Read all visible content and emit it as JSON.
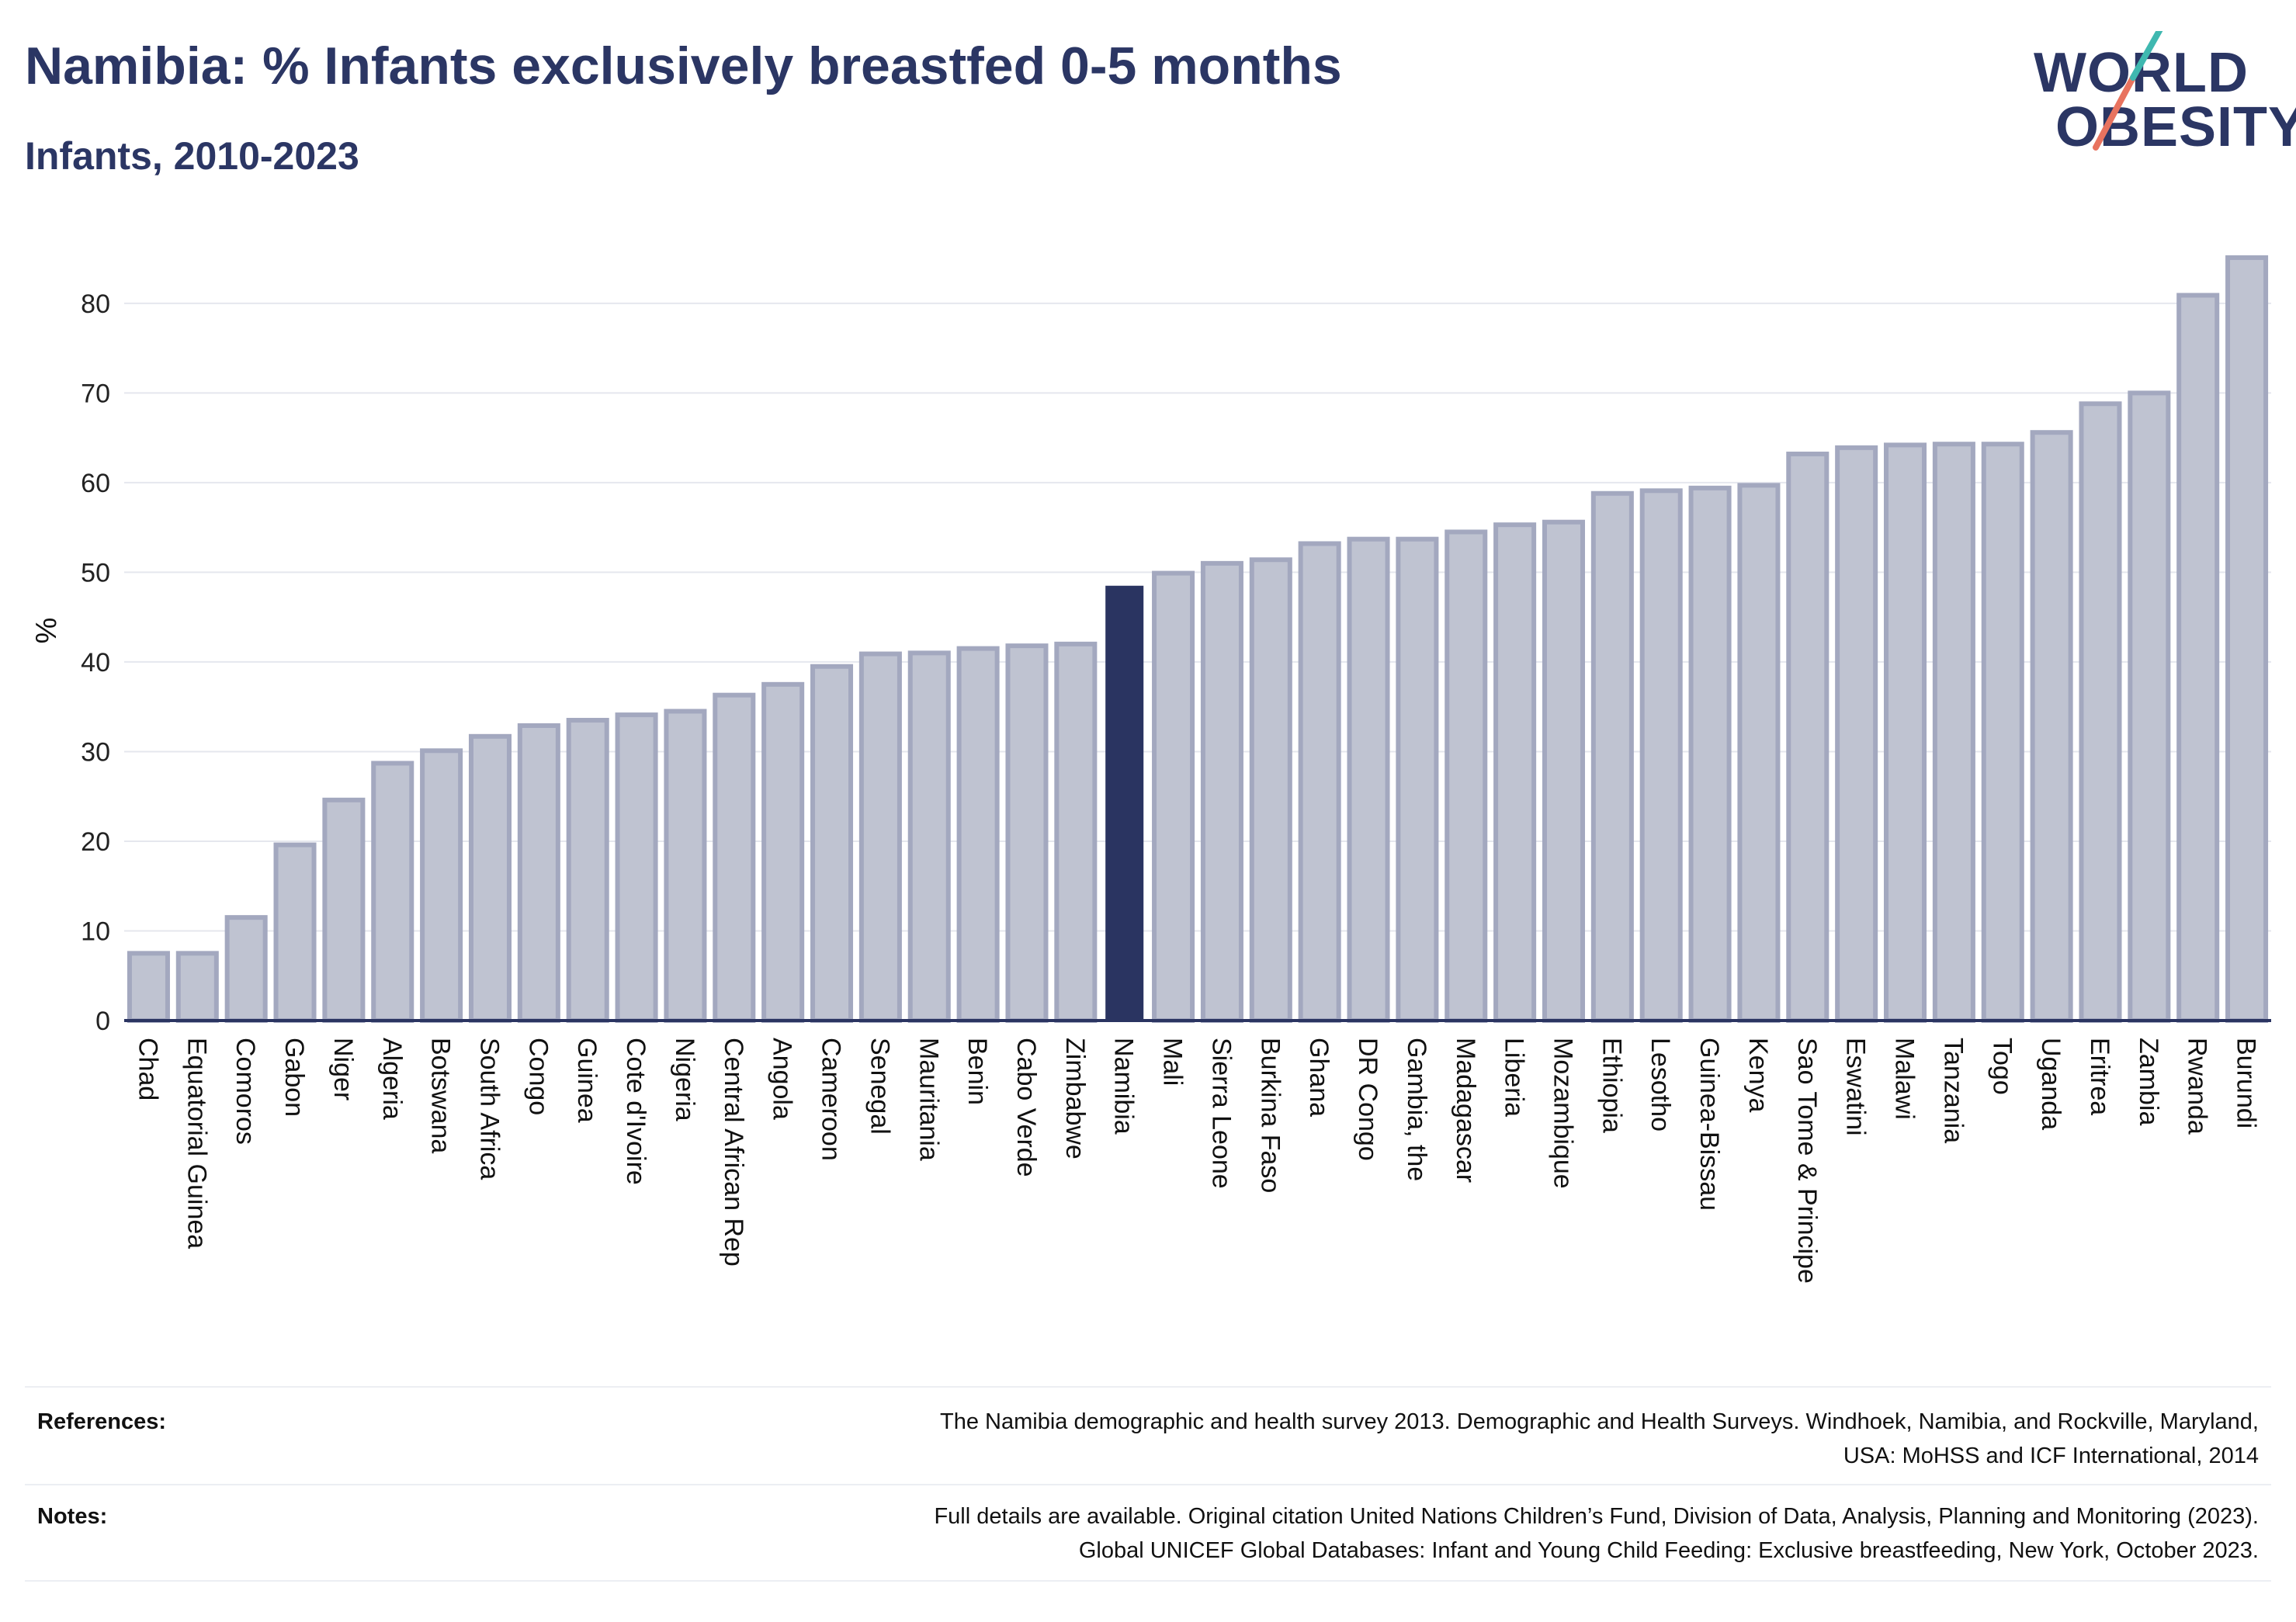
{
  "header": {
    "title": "Namibia: % Infants exclusively breastfed 0-5 months",
    "subtitle": "Infants, 2010-2023"
  },
  "logo": {
    "line1": "WORLD",
    "line2": "OBESITY",
    "slash_colors": [
      "#3fb8b0",
      "#e8735f"
    ]
  },
  "colors": {
    "bar": "#bfc3d1",
    "bar_border": "#a3a8bf",
    "highlight": "#2a3461",
    "grid": "#e5e7ee",
    "axis": "#2a3461"
  },
  "chart_data": {
    "type": "bar",
    "ylabel": "%",
    "ylim": [
      0,
      87
    ],
    "yticks": [
      0,
      10,
      20,
      30,
      40,
      50,
      60,
      70,
      80
    ],
    "grid": true,
    "highlight": "Namibia",
    "categories": [
      "Chad",
      "Equatorial Guinea",
      "Comoros",
      "Gabon",
      "Niger",
      "Algeria",
      "Botswana",
      "South Africa",
      "Congo",
      "Guinea",
      "Cote d'Ivoire",
      "Nigeria",
      "Central African Rep",
      "Angola",
      "Cameroon",
      "Senegal",
      "Mauritania",
      "Benin",
      "Cabo Verde",
      "Zimbabwe",
      "Namibia",
      "Mali",
      "Sierra Leone",
      "Burkina Faso",
      "Ghana",
      "DR Congo",
      "Gambia, the",
      "Madagascar",
      "Liberia",
      "Mozambique",
      "Ethiopia",
      "Lesotho",
      "Guinea-Bissau",
      "Kenya",
      "Sao Tome & Principe",
      "Eswatini",
      "Malawi",
      "Tanzania",
      "Togo",
      "Uganda",
      "Eritrea",
      "Zambia",
      "Rwanda",
      "Burundi"
    ],
    "values": [
      7.5,
      7.5,
      11.5,
      19.6,
      24.6,
      28.7,
      30.1,
      31.7,
      32.9,
      33.5,
      34.1,
      34.5,
      36.3,
      37.5,
      39.5,
      40.9,
      41.0,
      41.5,
      41.8,
      42.0,
      48.5,
      49.9,
      51.0,
      51.4,
      53.2,
      53.7,
      53.7,
      54.5,
      55.3,
      55.6,
      58.8,
      59.1,
      59.4,
      59.7,
      63.2,
      63.9,
      64.2,
      64.3,
      64.3,
      65.6,
      68.8,
      70.0,
      80.9,
      85.1
    ]
  },
  "footer": {
    "references_label": "References:",
    "references_lines": [
      "The Namibia demographic and health survey 2013. Demographic and Health Surveys. Windhoek, Namibia, and Rockville, Maryland,",
      "USA: MoHSS and ICF International, 2014"
    ],
    "notes_label": "Notes:",
    "notes_lines": [
      "Full details are available. Original citation United Nations Children’s Fund, Division of Data, Analysis, Planning and Monitoring (2023).",
      "Global UNICEF Global Databases: Infant and Young Child Feeding: Exclusive breastfeeding, New York, October 2023."
    ]
  }
}
